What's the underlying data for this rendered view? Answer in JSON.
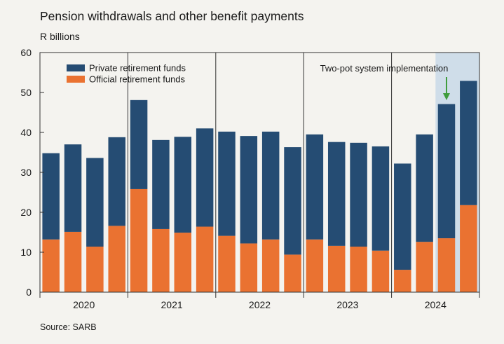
{
  "title": "Pension withdrawals and other benefit payments",
  "unit_label": "R billions",
  "source": "Source: SARB",
  "colors": {
    "private": "#254c73",
    "official": "#ea7231",
    "highlight": "#cfdde9",
    "arrow": "#3f9c3b"
  },
  "chart_data": {
    "type": "bar",
    "stacked": true,
    "title": "Pension withdrawals and other benefit payments",
    "ylabel": "R billions",
    "ylim": [
      0,
      60
    ],
    "yticks": [
      0,
      10,
      20,
      30,
      40,
      50,
      60
    ],
    "years": [
      "2020",
      "2021",
      "2022",
      "2023",
      "2024"
    ],
    "categories": [
      "2020 Q1",
      "2020 Q2",
      "2020 Q3",
      "2020 Q4",
      "2021 Q1",
      "2021 Q2",
      "2021 Q3",
      "2021 Q4",
      "2022 Q1",
      "2022 Q2",
      "2022 Q3",
      "2022 Q4",
      "2023 Q1",
      "2023 Q2",
      "2023 Q3",
      "2023 Q4",
      "2024 Q1",
      "2024 Q2",
      "2024 Q3",
      "2024 Q4"
    ],
    "series": [
      {
        "name": "Official retirement funds",
        "values": [
          13.2,
          15.1,
          11.4,
          16.6,
          25.8,
          15.8,
          14.9,
          16.4,
          14.1,
          12.2,
          13.2,
          9.4,
          13.2,
          11.6,
          11.4,
          10.4,
          5.6,
          12.6,
          13.5,
          21.8
        ]
      },
      {
        "name": "Private retirement funds",
        "values": [
          21.6,
          21.9,
          22.2,
          22.2,
          22.3,
          22.3,
          24.0,
          24.6,
          26.1,
          26.9,
          27.0,
          26.9,
          26.3,
          26.0,
          26.0,
          26.1,
          26.6,
          26.9,
          33.6,
          31.1
        ]
      }
    ],
    "legend": [
      "Private retirement funds",
      "Official retirement funds"
    ],
    "legend_position": "top-left",
    "annotation": {
      "text": "Two-pot system implementation",
      "highlight_categories": [
        "2024 Q3",
        "2024 Q4"
      ]
    }
  }
}
